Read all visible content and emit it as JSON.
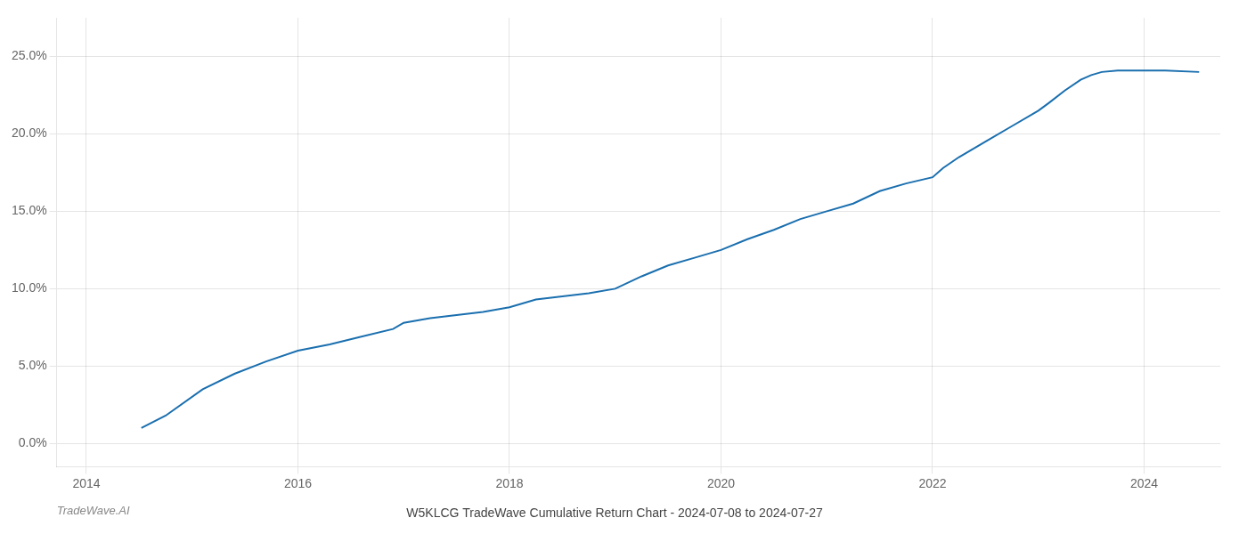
{
  "chart_data": {
    "type": "line",
    "title": "W5KLCG TradeWave Cumulative Return Chart - 2024-07-08 to 2024-07-27",
    "annotations": [
      "TradeWave.AI"
    ],
    "x": [
      2014.52,
      2014.75,
      2015.1,
      2015.4,
      2015.7,
      2016.0,
      2016.3,
      2016.6,
      2016.9,
      2017.0,
      2017.25,
      2017.5,
      2017.75,
      2018.0,
      2018.1,
      2018.25,
      2018.5,
      2018.75,
      2019.0,
      2019.25,
      2019.5,
      2019.75,
      2020.0,
      2020.25,
      2020.5,
      2020.75,
      2021.0,
      2021.25,
      2021.5,
      2021.75,
      2022.0,
      2022.1,
      2022.25,
      2022.5,
      2022.75,
      2023.0,
      2023.1,
      2023.25,
      2023.4,
      2023.5,
      2023.6,
      2023.75,
      2024.0,
      2024.2,
      2024.52
    ],
    "values": [
      1.0,
      1.8,
      3.5,
      4.5,
      5.3,
      6.0,
      6.4,
      6.9,
      7.4,
      7.8,
      8.1,
      8.3,
      8.5,
      8.8,
      9.0,
      9.3,
      9.5,
      9.7,
      10.0,
      10.8,
      11.5,
      12.0,
      12.5,
      13.2,
      13.8,
      14.5,
      15.0,
      15.5,
      16.3,
      16.8,
      17.2,
      17.8,
      18.5,
      19.5,
      20.5,
      21.5,
      22.0,
      22.8,
      23.5,
      23.8,
      24.0,
      24.1,
      24.1,
      24.1,
      24.0
    ],
    "color": "#1a6faf",
    "xlim": [
      2013.72,
      2024.72
    ],
    "ylim": [
      -1.5,
      27.5
    ],
    "xticks": [
      2014,
      2016,
      2018,
      2020,
      2022,
      2024
    ],
    "yticks": [
      {
        "value": 0,
        "label": "0.0%"
      },
      {
        "value": 5,
        "label": "5.0%"
      },
      {
        "value": 10,
        "label": "10.0%"
      },
      {
        "value": 15,
        "label": "15.0%"
      },
      {
        "value": 20,
        "label": "20.0%"
      },
      {
        "value": 25,
        "label": "25.0%"
      }
    ],
    "grid": true
  }
}
